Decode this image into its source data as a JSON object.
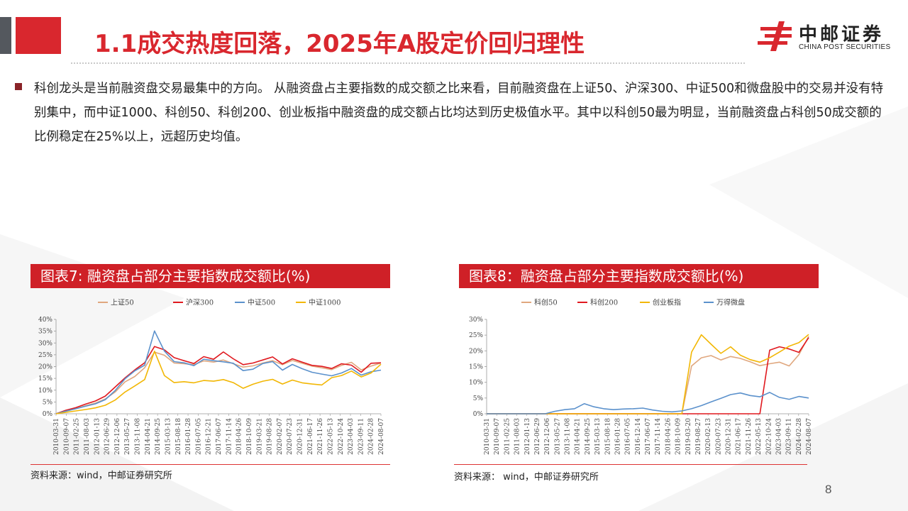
{
  "header": {
    "title": "1.1成交热度回落，2025年A股定价回归理性",
    "logo_cn": "中邮证券",
    "logo_en": "CHINA POST SECURITIES"
  },
  "body": {
    "paragraph": "科创龙头是当前融资盘交易最集中的方向。 从融资盘占主要指数的成交额之比来看，目前融资盘在上证50、沪深300、中证500和微盘股中的交易并没有特别集中，而中证1000、科创50、科创200、创业板指中融资盘的成交额占比均达到历史极值水平。其中以科创50最为明显，当前融资盘占科创50成交额的比例稳定在25%以上，远超历史均值。"
  },
  "figures": [
    {
      "header": "图表7:   融资盘占部分主要指数成交额比(%)",
      "source": "资料来源：wind，中邮证券研究所"
    },
    {
      "header": "图表8：融资盘占部分主要指数成交额比(%)",
      "source": "资料来源：  wind，中邮证券研究所"
    }
  ],
  "page_number": "8",
  "colors": {
    "accent": "#d9272e",
    "dark_bar": "#54585e"
  },
  "chart_data": [
    {
      "type": "line",
      "x": [
        "2010-03-31",
        "2010-09-07",
        "2011-02-25",
        "2011-08-03",
        "2012-01-13",
        "2012-06-29",
        "2012-12-06",
        "2013-05-27",
        "2013-11-08",
        "2014-04-21",
        "2014-09-25",
        "2015-03-13",
        "2015-08-18",
        "2016-01-28",
        "2016-07-05",
        "2016-12-14",
        "2017-05-22",
        "2017-11-03",
        "2018-04-19",
        "2018-09-24",
        "2019-03-04",
        "2019-08-22",
        "2020-01-13",
        "2020-06-19",
        "2020-11-26",
        "2021-05-11",
        "2021-10-15",
        "2022-03-29",
        "2022-09-02",
        "2023-02-20",
        "2023-07-26",
        "2024-01-05",
        "2024-06-13",
        "2024-11-20"
      ],
      "tick_labels": [
        "2010-03-31",
        "2010-09-07",
        "2011-02-25",
        "2011-08-03",
        "2012-01-13",
        "2012-06-29",
        "2012-12-06",
        "2013-05-27",
        "2013-11-08",
        "2014-04-21",
        "2014-09-25",
        "2015-03-13",
        "2015-08-18",
        "2016-01-28",
        "2016-07-05",
        "2016-12-21",
        "2017-06-07",
        "2017-11-14",
        "2018-04-26",
        "2018-10-09",
        "2019-03-21",
        "2019-08-28",
        "2020-02-07",
        "2020-07-23",
        "2020-12-31",
        "2021-06-17",
        "2021-11-26",
        "2022-05-13",
        "2022-10-24",
        "2023-04-03",
        "2023-09-11",
        "2024-02-28",
        "2024-08-07"
      ],
      "series": [
        {
          "name": "上证50",
          "color": "#e0a77e",
          "values": [
            0,
            1.2,
            2.2,
            3.4,
            4.5,
            6.3,
            9.2,
            13.5,
            15.8,
            19.5,
            26.1,
            24.8,
            21.5,
            21.2,
            20.8,
            22.4,
            21.9,
            22.8,
            21.2,
            19.8,
            20.3,
            21.5,
            22.5,
            20.8,
            22.6,
            21.4,
            20.2,
            19.5,
            18.7,
            20.5,
            21.8,
            18.6,
            20.2,
            21.5
          ]
        },
        {
          "name": "沪深300",
          "color": "#e0191f",
          "values": [
            0,
            1.5,
            2.6,
            4.1,
            5.4,
            7.5,
            11.3,
            15.2,
            18.6,
            21.6,
            28.5,
            27.1,
            23.8,
            22.5,
            21.3,
            24.2,
            23.1,
            26.2,
            23.3,
            20.8,
            21.5,
            22.8,
            24.1,
            21.1,
            23.3,
            21.9,
            20.5,
            20.1,
            19.2,
            21.2,
            20.6,
            17.6,
            21.4,
            21.6
          ]
        },
        {
          "name": "中证500",
          "color": "#5b91cc",
          "values": [
            0,
            1.1,
            2.1,
            3.2,
            4.2,
            6.0,
            9.8,
            14.8,
            18.2,
            20.6,
            35.1,
            26.6,
            22.1,
            21.6,
            20.4,
            23.1,
            22.5,
            22.0,
            21.4,
            18.3,
            18.9,
            21.3,
            22.1,
            18.5,
            20.9,
            19.1,
            17.6,
            16.8,
            16.1,
            17.3,
            19.2,
            16.4,
            17.8,
            18.5
          ]
        },
        {
          "name": "中证1000",
          "color": "#f2b705",
          "values": [
            0,
            0.6,
            1.2,
            1.8,
            2.5,
            3.6,
            5.8,
            9.2,
            11.8,
            14.5,
            26.5,
            16.2,
            13.2,
            13.6,
            13.1,
            14.1,
            13.8,
            14.5,
            13.2,
            10.8,
            12.5,
            13.8,
            14.6,
            12.6,
            14.3,
            13.1,
            12.6,
            12.2,
            15.3,
            16.2,
            18.1,
            15.6,
            17.3,
            21.0
          ]
        }
      ],
      "ylim": [
        0,
        40
      ],
      "yticks": [
        "0%",
        "5%",
        "10%",
        "15%",
        "20%",
        "25%",
        "30%",
        "35%",
        "40%"
      ],
      "legend": "top"
    },
    {
      "type": "line",
      "x": [
        "2010-03-31",
        "2010-09-07",
        "2011-02-25",
        "2011-08-03",
        "2012-01-13",
        "2012-06-29",
        "2012-12-06",
        "2013-05-27",
        "2013-11-08",
        "2014-04-21",
        "2014-09-25",
        "2015-03-13",
        "2015-08-18",
        "2016-01-28",
        "2016-07-05",
        "2016-12-14",
        "2017-05-22",
        "2017-11-03",
        "2018-04-19",
        "2018-09-24",
        "2019-03-04",
        "2019-08-22",
        "2020-01-13",
        "2020-06-19",
        "2020-11-26",
        "2021-05-11",
        "2021-10-15",
        "2022-03-29",
        "2022-09-02",
        "2023-02-20",
        "2023-07-26",
        "2024-01-05",
        "2024-06-13",
        "2024-11-20"
      ],
      "tick_labels": [
        "2010-03-31",
        "2010-09-07",
        "2011-02-25",
        "2011-08-03",
        "2012-01-13",
        "2012-06-29",
        "2012-12-06",
        "2013-05-27",
        "2013-11-08",
        "2014-04-21",
        "2014-09-25",
        "2015-03-13",
        "2015-08-18",
        "2016-01-28",
        "2016-07-05",
        "2016-12-14",
        "2017-06-07",
        "2017-11-14",
        "2018-04-26",
        "2018-10-09",
        "2019-03-20",
        "2019-08-27",
        "2020-02-13",
        "2020-07-23",
        "2020-12-31",
        "2021-06-17",
        "2021-11-26",
        "2022-05-13",
        "2022-10-24",
        "2023-04-03",
        "2023-09-11",
        "2024-02-28",
        "2024-08-07"
      ],
      "series": [
        {
          "name": "科创50",
          "color": "#e0a77e",
          "values": [
            0,
            0,
            0,
            0,
            0,
            0,
            0,
            0,
            0,
            0,
            0,
            0,
            0,
            0,
            0,
            0,
            0,
            0,
            0,
            0,
            0,
            15.2,
            17.8,
            18.5,
            17.1,
            18.2,
            17.6,
            16.5,
            15.3,
            15.9,
            16.4,
            15.2,
            18.8,
            24.6
          ]
        },
        {
          "name": "科创200",
          "color": "#e0191f",
          "values": [
            0,
            0,
            0,
            0,
            0,
            0,
            0,
            0,
            0,
            0,
            0,
            0,
            0,
            0,
            0,
            0,
            0,
            0,
            0,
            0,
            0,
            0,
            0,
            0,
            0,
            0,
            0,
            0,
            0,
            20.2,
            21.3,
            20.6,
            19.5,
            24.2
          ]
        },
        {
          "name": "创业板指",
          "color": "#f2b705",
          "values": [
            0,
            0,
            0,
            0,
            0,
            0,
            0,
            0,
            0,
            0,
            0,
            0,
            0,
            0,
            0,
            0,
            0,
            0,
            0,
            0,
            0,
            19.6,
            25.1,
            22.1,
            19.2,
            21.3,
            18.6,
            17.2,
            16.4,
            17.8,
            19.6,
            21.5,
            22.6,
            25.2
          ]
        },
        {
          "name": "万得微盘",
          "color": "#5b91cc",
          "values": [
            0,
            0,
            0,
            0,
            0,
            0,
            0,
            0.8,
            1.3,
            1.6,
            3.2,
            2.2,
            1.6,
            1.3,
            1.5,
            1.6,
            1.8,
            1.2,
            0.8,
            0.6,
            0.9,
            1.6,
            2.6,
            3.8,
            4.9,
            6.1,
            6.6,
            5.8,
            5.4,
            6.8,
            5.2,
            4.6,
            5.5,
            5.0
          ]
        }
      ],
      "ylim": [
        0,
        30
      ],
      "yticks": [
        "0%",
        "5%",
        "10%",
        "15%",
        "20%",
        "25%",
        "30%"
      ],
      "legend": "top"
    }
  ]
}
